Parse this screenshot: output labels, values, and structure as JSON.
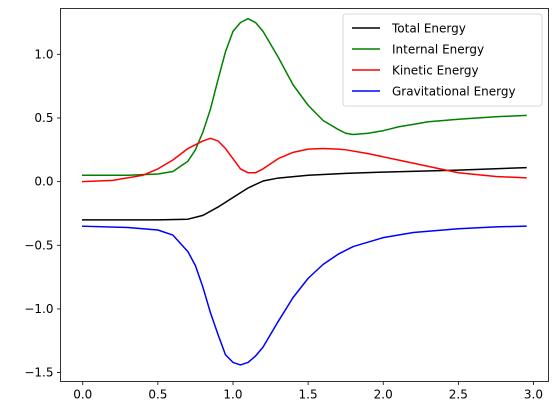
{
  "chart_data": {
    "type": "line",
    "title": "",
    "xlabel": "",
    "ylabel": "",
    "xlim": [
      -0.148,
      3.1
    ],
    "ylim": [
      -1.57,
      1.36
    ],
    "xticks": [
      0.0,
      0.5,
      1.0,
      1.5,
      2.0,
      2.5,
      3.0
    ],
    "xtick_labels": [
      "0.0",
      "0.5",
      "1.0",
      "1.5",
      "2.0",
      "2.5",
      "3.0"
    ],
    "yticks": [
      -1.5,
      -1.0,
      -0.5,
      0.0,
      0.5,
      1.0
    ],
    "ytick_labels": [
      "−1.5",
      "−1.0",
      "−0.5",
      "0.0",
      "0.5",
      "1.0"
    ],
    "grid": false,
    "legend_position": "top-right",
    "series": [
      {
        "name": "Total Energy",
        "color": "#000000",
        "x": [
          0.0,
          0.5,
          0.7,
          0.8,
          0.9,
          1.0,
          1.1,
          1.2,
          1.3,
          1.5,
          1.75,
          2.0,
          2.5,
          2.95
        ],
        "y": [
          -0.3,
          -0.3,
          -0.295,
          -0.265,
          -0.2,
          -0.125,
          -0.05,
          0.005,
          0.028,
          0.05,
          0.065,
          0.075,
          0.09,
          0.11
        ]
      },
      {
        "name": "Internal Energy",
        "color": "#008000",
        "x": [
          0.0,
          0.3,
          0.5,
          0.6,
          0.7,
          0.75,
          0.8,
          0.85,
          0.9,
          0.95,
          1.0,
          1.05,
          1.1,
          1.15,
          1.2,
          1.3,
          1.4,
          1.5,
          1.6,
          1.7,
          1.75,
          1.8,
          1.9,
          2.0,
          2.1,
          2.2,
          2.3,
          2.5,
          2.75,
          2.95
        ],
        "y": [
          0.05,
          0.05,
          0.06,
          0.08,
          0.16,
          0.25,
          0.39,
          0.57,
          0.8,
          1.02,
          1.18,
          1.25,
          1.28,
          1.25,
          1.18,
          0.98,
          0.76,
          0.6,
          0.48,
          0.41,
          0.38,
          0.37,
          0.38,
          0.4,
          0.43,
          0.45,
          0.47,
          0.49,
          0.51,
          0.52
        ]
      },
      {
        "name": "Kinetic Energy",
        "color": "#ff0000",
        "x": [
          0.0,
          0.2,
          0.4,
          0.5,
          0.6,
          0.7,
          0.8,
          0.85,
          0.9,
          0.95,
          1.0,
          1.05,
          1.1,
          1.15,
          1.2,
          1.3,
          1.4,
          1.5,
          1.6,
          1.7,
          1.75,
          1.9,
          2.1,
          2.3,
          2.5,
          2.75,
          2.95
        ],
        "y": [
          0.0,
          0.01,
          0.05,
          0.1,
          0.17,
          0.26,
          0.32,
          0.34,
          0.32,
          0.26,
          0.18,
          0.1,
          0.07,
          0.07,
          0.1,
          0.18,
          0.23,
          0.255,
          0.26,
          0.255,
          0.25,
          0.22,
          0.17,
          0.12,
          0.07,
          0.04,
          0.03
        ]
      },
      {
        "name": "Gravitational Energy",
        "color": "#0000ff",
        "x": [
          0.0,
          0.3,
          0.5,
          0.6,
          0.7,
          0.75,
          0.8,
          0.85,
          0.9,
          0.95,
          1.0,
          1.05,
          1.1,
          1.15,
          1.2,
          1.3,
          1.4,
          1.5,
          1.6,
          1.7,
          1.8,
          2.0,
          2.2,
          2.5,
          2.75,
          2.95
        ],
        "y": [
          -0.35,
          -0.36,
          -0.38,
          -0.42,
          -0.55,
          -0.66,
          -0.83,
          -1.03,
          -1.2,
          -1.36,
          -1.42,
          -1.44,
          -1.42,
          -1.37,
          -1.3,
          -1.1,
          -0.91,
          -0.76,
          -0.65,
          -0.57,
          -0.51,
          -0.44,
          -0.4,
          -0.37,
          -0.355,
          -0.35
        ]
      }
    ]
  }
}
